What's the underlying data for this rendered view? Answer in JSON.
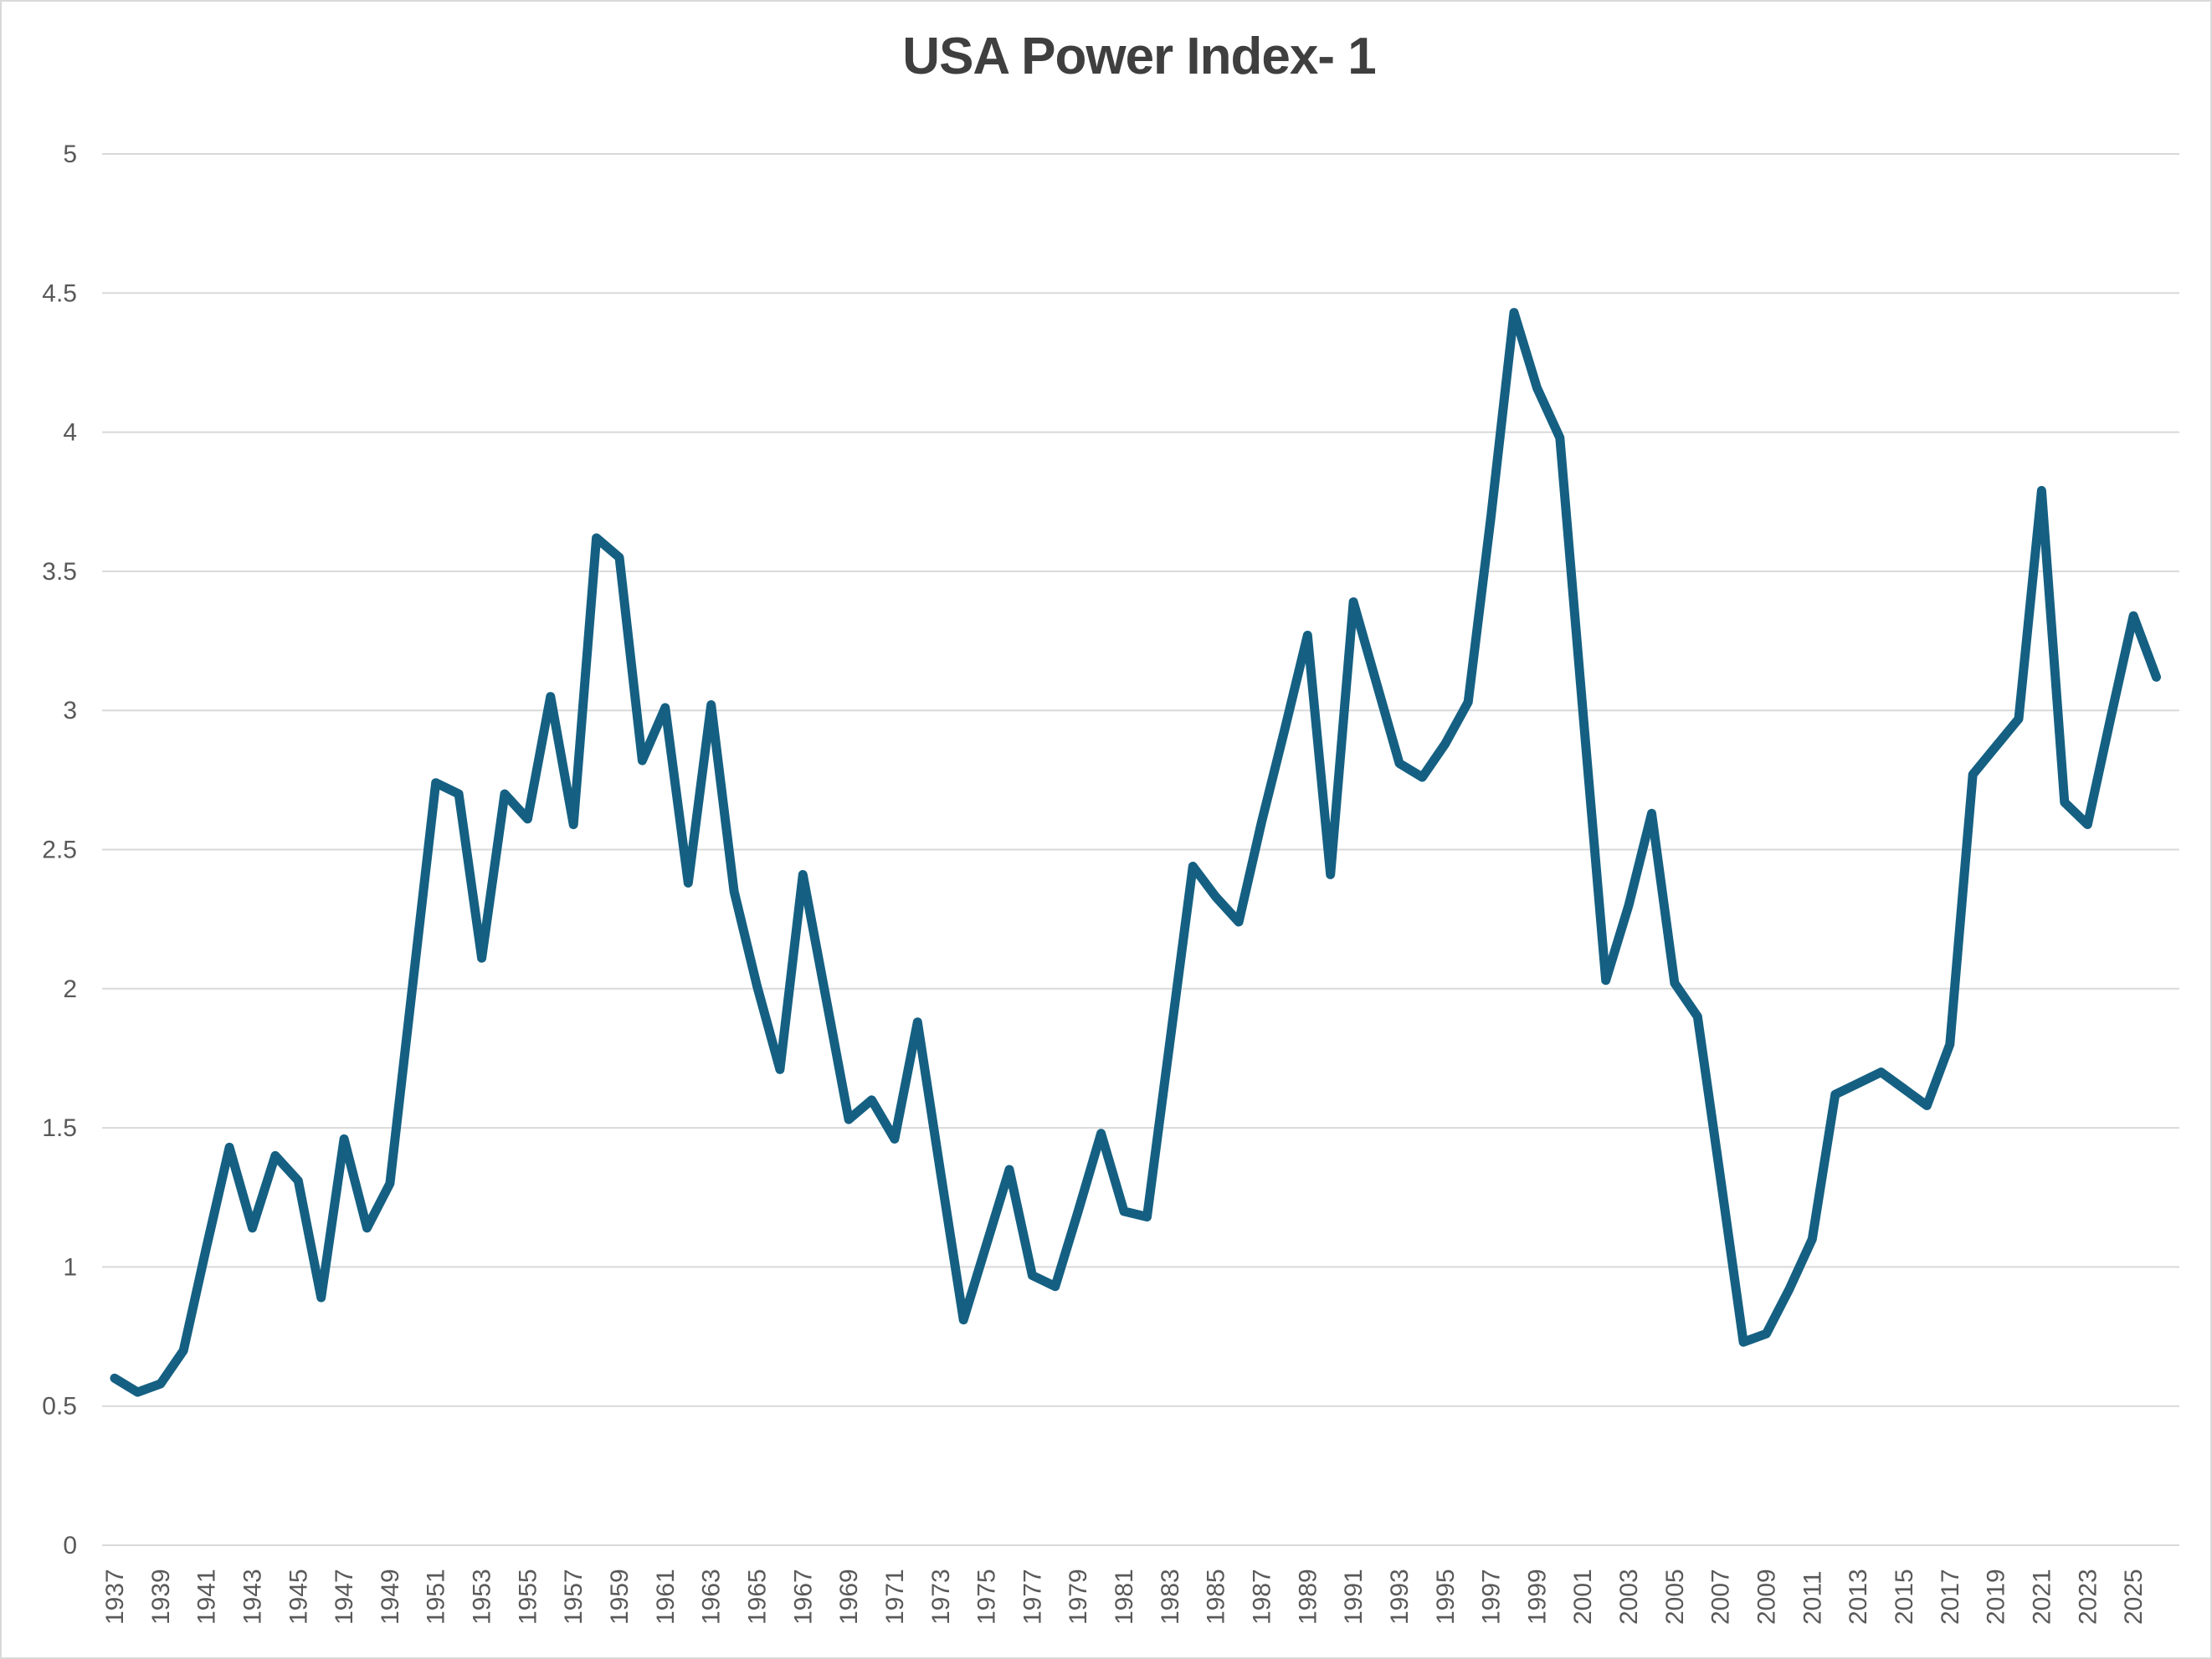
{
  "chart_data": {
    "type": "line",
    "title": "USA Power Index- 1",
    "xlabel": "",
    "ylabel": "",
    "xlim": [
      1937,
      2026
    ],
    "ylim": [
      0,
      5
    ],
    "grid": true,
    "legend": "none",
    "yticks": [
      0,
      0.5,
      1,
      1.5,
      2,
      2.5,
      3,
      3.5,
      4,
      4.5,
      5
    ],
    "ytick_labels": [
      "0",
      "0.5",
      "1",
      "1.5",
      "2",
      "2.5",
      "3",
      "3.5",
      "4",
      "4.5",
      "5"
    ],
    "xtick_labels": [
      "1937",
      "1939",
      "1941",
      "1943",
      "1945",
      "1947",
      "1949",
      "1951",
      "1953",
      "1955",
      "1957",
      "1959",
      "1961",
      "1963",
      "1965",
      "1967",
      "1969",
      "1971",
      "1973",
      "1975",
      "1977",
      "1979",
      "1981",
      "1983",
      "1985",
      "1987",
      "1989",
      "1991",
      "1993",
      "1995",
      "1997",
      "1999",
      "2001",
      "2003",
      "2005",
      "2007",
      "2009",
      "2011",
      "2013",
      "2015",
      "2017",
      "2019",
      "2021",
      "2023",
      "2025"
    ],
    "series": [
      {
        "name": "USA Power Index",
        "x": [
          1937,
          1938,
          1939,
          1940,
          1941,
          1942,
          1943,
          1944,
          1945,
          1946,
          1947,
          1948,
          1949,
          1950,
          1951,
          1952,
          1953,
          1954,
          1955,
          1956,
          1957,
          1958,
          1959,
          1960,
          1961,
          1962,
          1963,
          1964,
          1965,
          1966,
          1967,
          1968,
          1969,
          1970,
          1971,
          1972,
          1973,
          1974,
          1975,
          1976,
          1977,
          1978,
          1979,
          1980,
          1981,
          1982,
          1983,
          1984,
          1985,
          1986,
          1987,
          1988,
          1989,
          1990,
          1991,
          1992,
          1993,
          1994,
          1995,
          1996,
          1997,
          1998,
          1999,
          2000,
          2001,
          2002,
          2003,
          2004,
          2005,
          2006,
          2007,
          2008,
          2009,
          2010,
          2011,
          2012,
          2013,
          2014,
          2015,
          2016,
          2017,
          2018,
          2019,
          2020,
          2021,
          2022,
          2023,
          2024,
          2025,
          2026
        ],
        "values": [
          0.6,
          0.55,
          0.58,
          0.7,
          1.07,
          1.43,
          1.14,
          1.4,
          1.31,
          0.89,
          1.46,
          1.14,
          1.3,
          2.02,
          2.74,
          2.7,
          2.11,
          2.7,
          2.61,
          3.05,
          2.59,
          3.62,
          3.55,
          2.82,
          3.01,
          2.38,
          3.02,
          2.35,
          2.01,
          1.71,
          2.41,
          1.97,
          1.53,
          1.6,
          1.46,
          1.88,
          1.34,
          0.81,
          1.08,
          1.35,
          0.97,
          0.93,
          1.2,
          1.48,
          1.2,
          1.18,
          1.81,
          2.44,
          2.33,
          2.24,
          2.6,
          2.93,
          3.27,
          2.41,
          3.39,
          3.1,
          2.81,
          2.76,
          2.88,
          3.03,
          3.7,
          4.43,
          4.16,
          3.98,
          3.0,
          2.03,
          2.3,
          2.63,
          2.02,
          1.9,
          1.32,
          0.73,
          0.76,
          0.92,
          1.1,
          1.62,
          1.66,
          1.7,
          1.64,
          1.58,
          1.8,
          2.77,
          2.87,
          2.97,
          3.79,
          2.67,
          2.59,
          2.97,
          3.34,
          3.12
        ]
      }
    ],
    "line_color": "#156082",
    "gridline_color": "#d9d9d9",
    "label_color": "#595959",
    "title_color": "#3f3f3f",
    "background_color": "#ffffff",
    "border_color": "#d9d9d9"
  }
}
